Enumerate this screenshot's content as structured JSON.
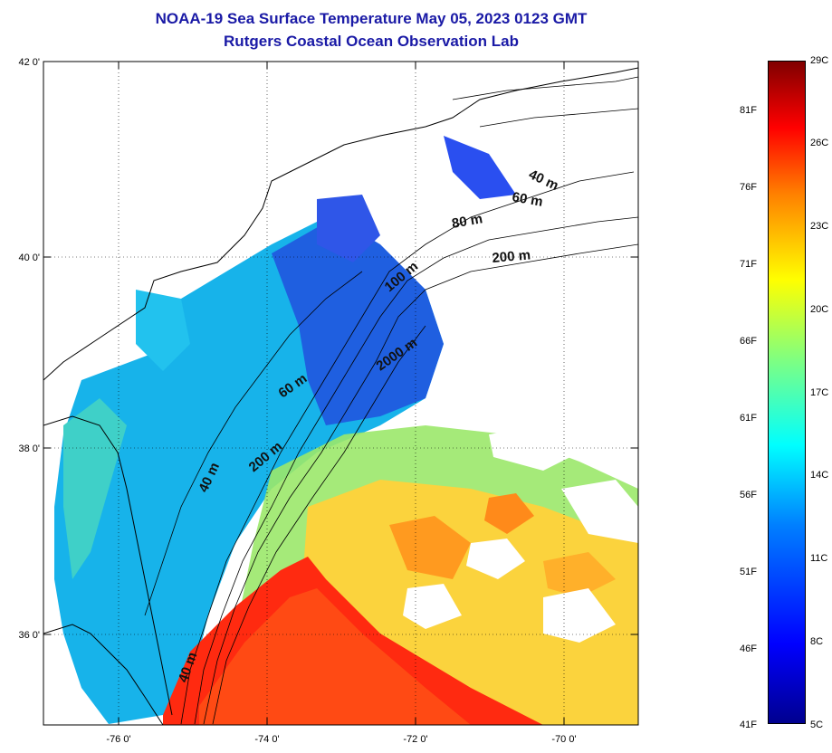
{
  "title": {
    "line1": "NOAA-19 Sea Surface Temperature May 05, 2023 0123 GMT",
    "line2": "Rutgers Coastal Ocean Observation Lab"
  },
  "map": {
    "lat_labels": [
      "42 0'",
      "40 0'",
      "38 0'",
      "36 0'"
    ],
    "lon_labels": [
      "-76 0'",
      "-74 0'",
      "-72 0'",
      "-70 0'"
    ],
    "bathymetry_labels": [
      "40 m",
      "60 m",
      "80 m",
      "200 m",
      "100 m",
      "2000 m",
      "60 m",
      "200 m",
      "40 m",
      "40 m"
    ]
  },
  "colorbar": {
    "f_labels": [
      "81F",
      "76F",
      "71F",
      "66F",
      "61F",
      "56F",
      "51F",
      "46F",
      "41F"
    ],
    "c_labels": [
      "29C",
      "26C",
      "23C",
      "20C",
      "17C",
      "14C",
      "11C",
      "8C",
      "5C"
    ],
    "range_c": [
      5,
      29
    ],
    "colors": {
      "cold": "#00008f",
      "cool": "#0080ff",
      "mid": "#00ffff",
      "warm": "#ffff00",
      "hot": "#ff0000",
      "max": "#800000"
    }
  }
}
